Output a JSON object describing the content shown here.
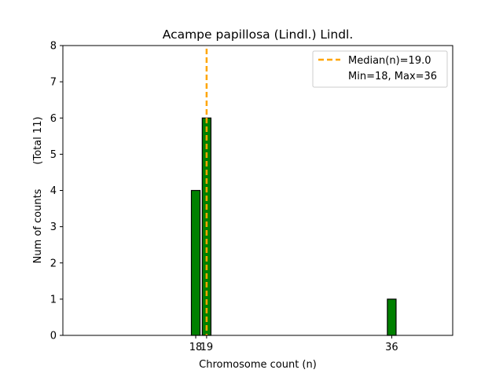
{
  "chart_data": {
    "type": "bar",
    "title": "Acampe papillosa (Lindl.) Lindl.",
    "xlabel": "Chromosome count (n)",
    "ylabel": "Num of counts",
    "ylabel_secondary": "(Total 11)",
    "xlim": [
      5.8,
      41.6
    ],
    "ylim": [
      0,
      8
    ],
    "x_ticks": [
      18,
      19,
      36
    ],
    "y_ticks": [
      0,
      1,
      2,
      3,
      4,
      5,
      6,
      7,
      8
    ],
    "bar_width": 0.8,
    "bars": [
      {
        "x": 18,
        "count": 4
      },
      {
        "x": 19,
        "count": 6
      },
      {
        "x": 36,
        "count": 1
      }
    ],
    "median_line": {
      "x": 19.0,
      "label": "Median(n)=19.0"
    },
    "legend": {
      "position": "top-right",
      "entries": [
        "Median(n)=19.0",
        "Min=18, Max=36"
      ]
    },
    "grid": false,
    "colors": {
      "bar_fill": "#008000",
      "bar_edge": "#000000",
      "median": "#ffa500"
    }
  }
}
